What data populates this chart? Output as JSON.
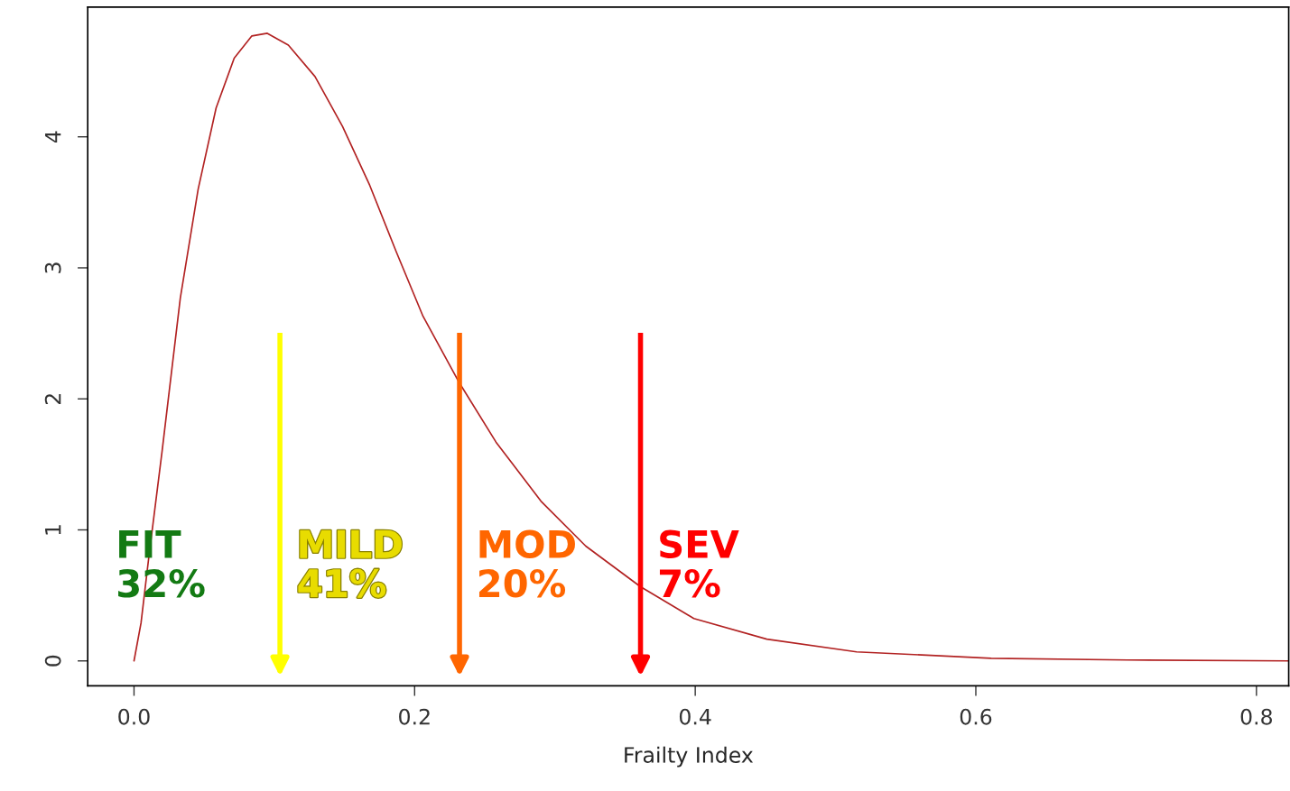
{
  "chart_data": {
    "type": "line",
    "xlabel": "Frailty Index",
    "x": [
      0,
      0.005,
      0.0103,
      0.02,
      0.033,
      0.0457,
      0.0585,
      0.0714,
      0.084,
      0.095,
      0.11,
      0.129,
      0.1486,
      0.168,
      0.187,
      0.206,
      0.232,
      0.258,
      0.29,
      0.322,
      0.361,
      0.399,
      0.451,
      0.515,
      0.611,
      0.708,
      0.823
    ],
    "series": [
      {
        "color": "#b22222",
        "values": [
          0,
          0.29,
          0.77,
          1.6,
          2.77,
          3.6,
          4.22,
          4.6,
          4.77,
          4.79,
          4.7,
          4.46,
          4.08,
          3.63,
          3.12,
          2.63,
          2.12,
          1.67,
          1.22,
          0.876,
          0.566,
          0.324,
          0.166,
          0.069,
          0.02,
          0.007,
          0
        ]
      }
    ],
    "xlim": [
      -0.033,
      0.823
    ],
    "ylim": [
      -0.19,
      4.99
    ],
    "xticks": [
      {
        "value": 0,
        "label": "0.0"
      },
      {
        "value": 0.2,
        "label": "0.2"
      },
      {
        "value": 0.4,
        "label": "0.4"
      },
      {
        "value": 0.6,
        "label": "0.6"
      },
      {
        "value": 0.8,
        "label": "0.8"
      }
    ],
    "yticks": [
      0,
      1,
      2,
      3,
      4
    ],
    "grid": false,
    "legend": false,
    "marker": "none",
    "line_style": "solid",
    "ref_lines": [
      {
        "axis": "x",
        "value": 0.104,
        "color": "#ffff00"
      },
      {
        "axis": "x",
        "value": 0.232,
        "color": "#ff6600"
      },
      {
        "axis": "x",
        "value": 0.361,
        "color": "#ff0000"
      }
    ],
    "annotations": [
      "FIT\n32%",
      "MILD\n41%",
      "MOD\n20%",
      "SEV\n7%"
    ]
  }
}
